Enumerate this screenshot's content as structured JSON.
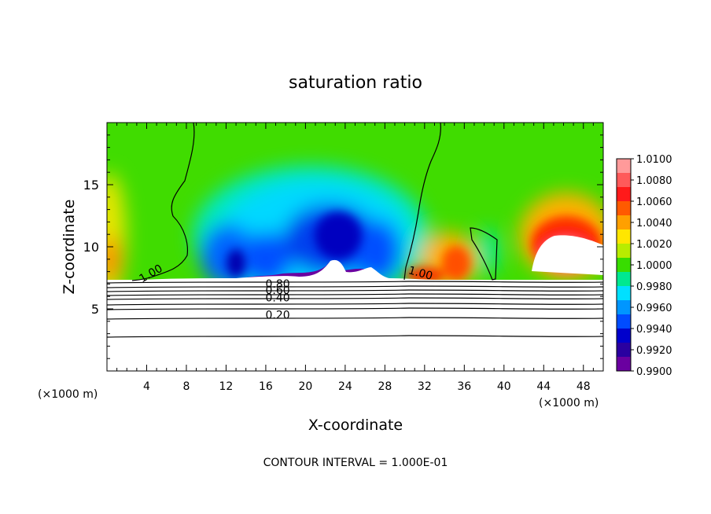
{
  "chart_data": {
    "type": "heatmap",
    "title": "saturation ratio",
    "xlabel": "X-coordinate",
    "ylabel": "Z-coordinate",
    "x_units_left": "(×1000 m)",
    "x_units_right": "(×1000 m)",
    "xlim": [
      0,
      50
    ],
    "ylim": [
      0,
      20
    ],
    "x_ticks": [
      4,
      8,
      12,
      16,
      20,
      24,
      28,
      32,
      36,
      40,
      44,
      48
    ],
    "y_ticks": [
      5,
      10,
      15
    ],
    "footer": "CONTOUR INTERVAL = 1.000E-01",
    "colorbar": {
      "levels": [
        "1.0100",
        "1.0080",
        "1.0060",
        "1.0040",
        "1.0020",
        "1.0000",
        "0.9980",
        "0.9960",
        "0.9940",
        "0.9920",
        "0.9900"
      ],
      "colors": [
        "#ff9a9a",
        "#ff5a5a",
        "#ff1a1a",
        "#ff5a00",
        "#ffa000",
        "#ffe600",
        "#b8ec00",
        "#38dd00",
        "#00e890",
        "#00e0ff",
        "#0096ff",
        "#004cff",
        "#0000cc",
        "#2a00a0",
        "#6a00a0"
      ]
    },
    "contour_labels": [
      {
        "text": "1.00",
        "x": 4.6,
        "z": 7.6
      },
      {
        "text": "1.00",
        "x": 31.5,
        "z": 7.6
      },
      {
        "text": "0.80",
        "x": 17.2,
        "z": 6.7
      },
      {
        "text": "0.60",
        "x": 17.2,
        "z": 6.2
      },
      {
        "text": "0.40",
        "x": 17.2,
        "z": 5.6
      },
      {
        "text": "0.20",
        "x": 17.2,
        "z": 4.2
      }
    ],
    "contours_below_cloud": [
      7.5,
      7.1,
      6.7,
      6.3,
      5.9,
      5.5,
      5.0,
      4.2,
      2.9
    ]
  }
}
